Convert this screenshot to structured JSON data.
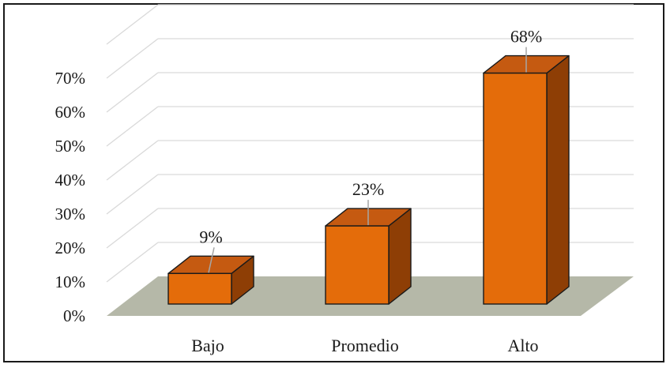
{
  "chart_data": {
    "type": "bar",
    "style": "3d-column",
    "categories": [
      "Bajo",
      "Promedio",
      "Alto"
    ],
    "values": [
      9,
      23,
      68
    ],
    "data_labels": [
      "9%",
      "23%",
      "68%"
    ],
    "y_ticks": [
      "0%",
      "10%",
      "20%",
      "30%",
      "40%",
      "50%",
      "60%",
      "70%"
    ],
    "ylim": [
      0,
      80
    ],
    "grid": true,
    "legend": "none",
    "colors": {
      "bar_front": "#E46C0A",
      "bar_top": "#C55A11",
      "bar_side": "#8E3E05",
      "bar_outline": "#1a1a1a",
      "floor": "#B5B8A8",
      "grid": "#D9D9D9"
    }
  }
}
